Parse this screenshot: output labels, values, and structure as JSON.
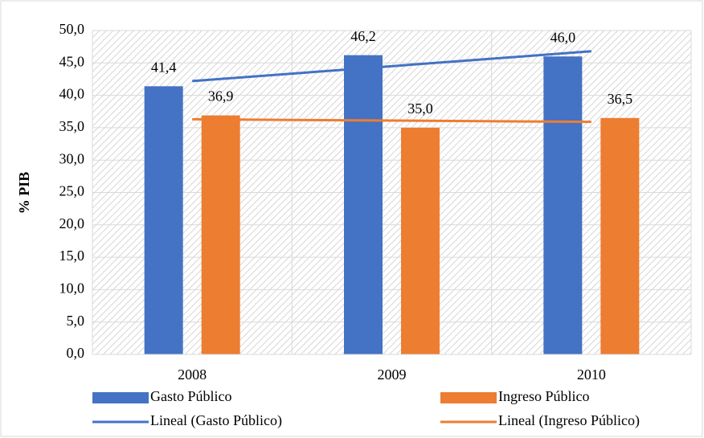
{
  "chart_data": {
    "type": "bar",
    "ylabel": "% PIB",
    "categories": [
      "2008",
      "2009",
      "2010"
    ],
    "series": [
      {
        "name": "Gasto Público",
        "color": "#4472c4",
        "values": [
          41.4,
          46.2,
          46.0
        ],
        "value_labels": [
          "41,4",
          "46,2",
          "46,0"
        ]
      },
      {
        "name": "Ingreso Público",
        "color": "#ed7d31",
        "values": [
          36.9,
          35.0,
          36.5
        ],
        "value_labels": [
          "36,9",
          "35,0",
          "36,5"
        ]
      },
      {
        "name": "Lineal (Gasto Público)",
        "type": "line",
        "color": "#4472c4",
        "values": [
          42.2,
          44.5,
          46.8
        ]
      },
      {
        "name": "Lineal (Ingreso Público)",
        "type": "line",
        "color": "#ed7d31",
        "values": [
          36.3,
          36.1,
          35.9
        ]
      }
    ],
    "ylim": [
      0,
      50
    ],
    "yticks": [
      {
        "value": 0,
        "label": "0,0"
      },
      {
        "value": 5,
        "label": "5,0"
      },
      {
        "value": 10,
        "label": "10,0"
      },
      {
        "value": 15,
        "label": "15,0"
      },
      {
        "value": 20,
        "label": "20,0"
      },
      {
        "value": 25,
        "label": "25,0"
      },
      {
        "value": 30,
        "label": "30,0"
      },
      {
        "value": 35,
        "label": "35,0"
      },
      {
        "value": 40,
        "label": "40,0"
      },
      {
        "value": 45,
        "label": "45,0"
      },
      {
        "value": 50,
        "label": "50,0"
      }
    ],
    "grid": true
  }
}
